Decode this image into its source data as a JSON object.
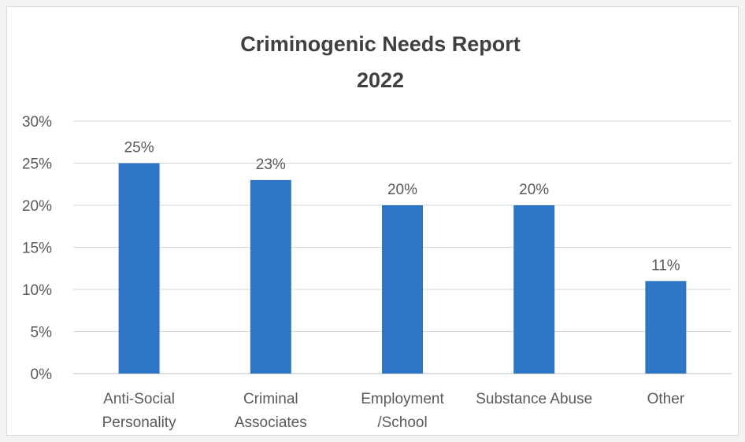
{
  "chart_data": {
    "type": "bar",
    "title_lines": [
      "Criminogenic Needs Report",
      "2022"
    ],
    "categories": [
      [
        "Anti-Social",
        "Personality"
      ],
      [
        "Criminal",
        "Associates"
      ],
      [
        "Employment",
        "/School"
      ],
      [
        "Substance Abuse"
      ],
      [
        "Other"
      ]
    ],
    "values": [
      25,
      23,
      20,
      20,
      11
    ],
    "data_labels": [
      "25%",
      "23%",
      "20%",
      "20%",
      "11%"
    ],
    "ylim": [
      0,
      30
    ],
    "y_ticks": [
      0,
      5,
      10,
      15,
      20,
      25,
      30
    ],
    "y_tick_labels": [
      "0%",
      "5%",
      "10%",
      "15%",
      "20%",
      "25%",
      "30%"
    ],
    "grid": true,
    "legend": "none",
    "bar_color": "#2e75c5"
  }
}
